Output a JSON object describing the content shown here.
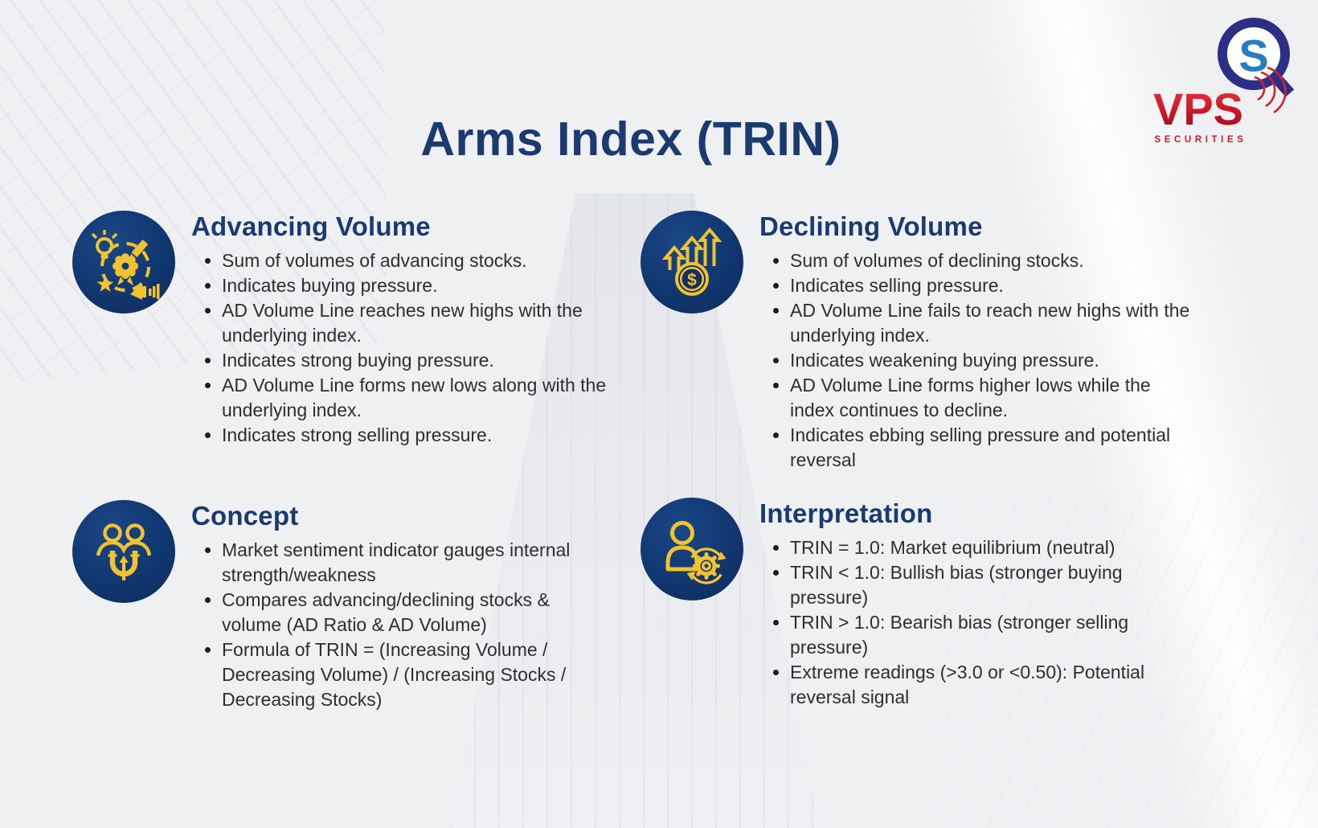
{
  "page": {
    "title": "Arms Index (TRIN)"
  },
  "logo": {
    "brand": "VPS",
    "subtitle": "SECURITIES",
    "monogram": "S"
  },
  "colors": {
    "heading_navy": "#1b3a70",
    "body_text": "#2e2e2e",
    "icon_circle_navy": "#123a73",
    "icon_glyph_yellow": "#f2c230",
    "logo_red": "#cf1f2e",
    "logo_indigo": "#2d2f86",
    "logo_blue": "#2a7cc0",
    "background": "#eff0f2"
  },
  "sections": [
    {
      "id": "advancing-volume",
      "heading": "Advancing Volume",
      "icon": "creativity-icon",
      "bullets": [
        "Sum of volumes of advancing stocks.",
        "Indicates buying pressure.",
        "AD Volume Line reaches new highs with the underlying index.",
        "Indicates strong buying pressure.",
        "AD Volume Line forms new lows along with the underlying index.",
        "Indicates strong selling pressure."
      ]
    },
    {
      "id": "declining-volume",
      "heading": "Declining Volume",
      "icon": "rising-arrows-coin-icon",
      "bullets": [
        "Sum of volumes of declining stocks.",
        "Indicates selling pressure.",
        "AD Volume Line fails to reach new highs with the underlying index.",
        "Indicates weakening buying pressure.",
        "AD Volume Line forms higher lows while the index continues to decline.",
        "Indicates ebbing selling pressure and potential reversal"
      ]
    },
    {
      "id": "concept",
      "heading": "Concept",
      "icon": "people-magnet-icon",
      "bullets": [
        "Market sentiment indicator gauges internal strength/weakness",
        "Compares advancing/declining stocks & volume (AD Ratio & AD Volume)",
        "Formula of TRIN = (Increasing Volume / Decreasing Volume) / (Increasing Stocks / Decreasing Stocks)"
      ]
    },
    {
      "id": "interpretation",
      "heading": "Interpretation",
      "icon": "person-gear-icon",
      "bullets": [
        "TRIN = 1.0: Market equilibrium (neutral)",
        "TRIN < 1.0: Bullish bias (stronger buying pressure)",
        "TRIN > 1.0: Bearish bias (stronger selling pressure)",
        "Extreme readings (>3.0 or <0.50): Potential reversal signal"
      ]
    }
  ]
}
